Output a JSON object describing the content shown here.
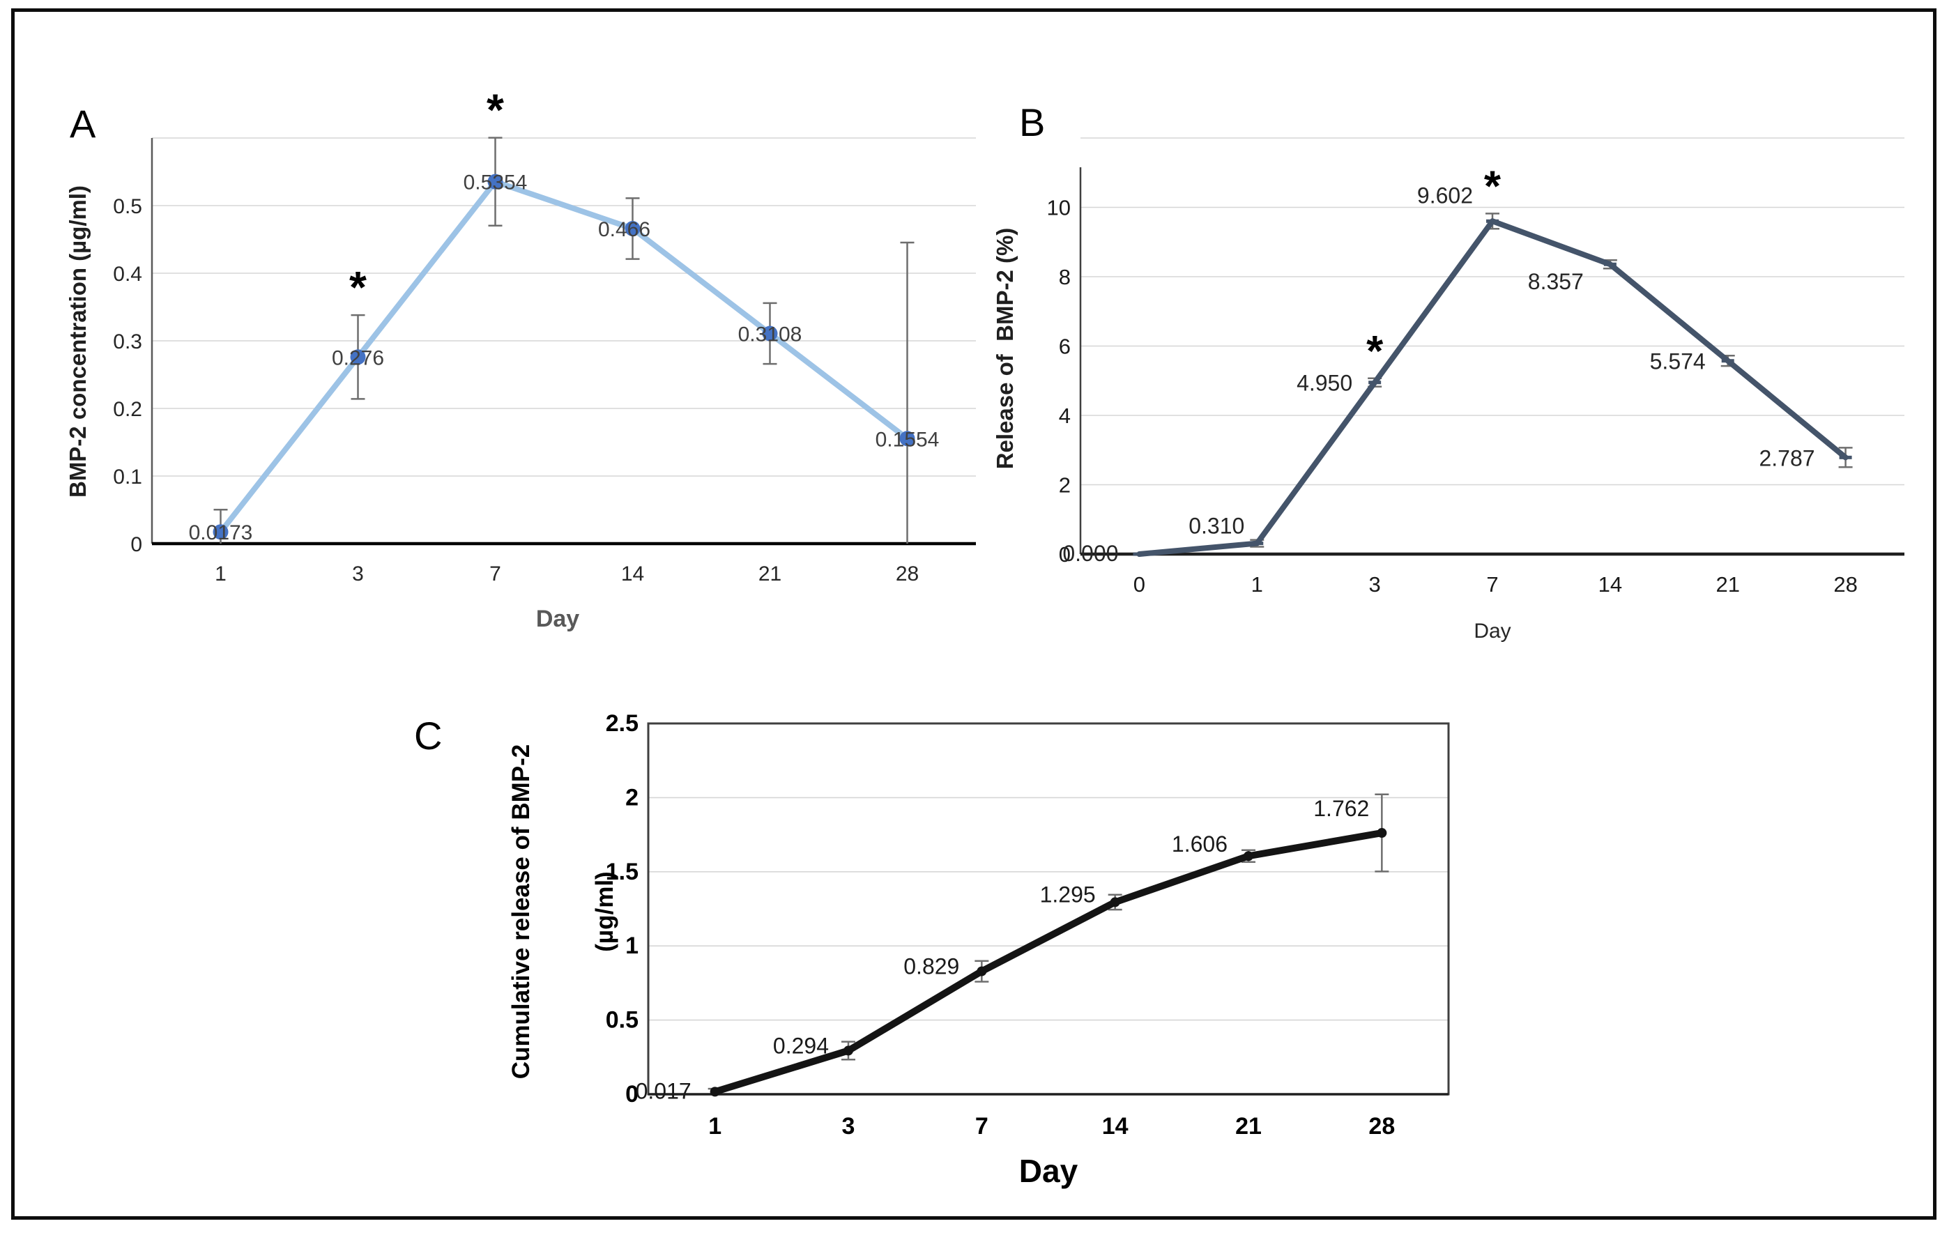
{
  "figure": {
    "background": "#ffffff",
    "border_color": "#0d0d0d"
  },
  "panels": [
    {
      "letter": "A"
    },
    {
      "letter": "B"
    },
    {
      "letter": "C"
    }
  ],
  "chart_data": [
    {
      "panel": "A",
      "type": "line",
      "title": "",
      "xlabel": "Day",
      "ylabel": "BMP-2 concentration (µg/ml)",
      "categories": [
        "1",
        "3",
        "7",
        "14",
        "21",
        "28"
      ],
      "values": [
        0.0173,
        0.276,
        0.5354,
        0.466,
        0.3108,
        0.1554
      ],
      "data_labels": [
        "0.0173",
        "0.276",
        "0.5354",
        "0.466",
        "0.3108",
        "0.1554"
      ],
      "errors": [
        0.033,
        0.062,
        0.065,
        0.045,
        0.045,
        0.29
      ],
      "significance_markers": [
        {
          "index": 1,
          "symbol": "*"
        },
        {
          "index": 2,
          "symbol": "*"
        }
      ],
      "ylim": [
        0,
        0.6
      ],
      "ytick_step": 0.1,
      "ytick_labels": [
        "0",
        "0.1",
        "0.2",
        "0.3",
        "0.4",
        "0.5"
      ],
      "grid": true,
      "legend": "none",
      "line_color": "#9DC3E6",
      "marker_color": "#4472C4",
      "marker": "circle"
    },
    {
      "panel": "B",
      "type": "line",
      "title": "",
      "xlabel": "Day",
      "ylabel": "Release of  BMP-2 (%)",
      "categories": [
        "0",
        "1",
        "3",
        "7",
        "14",
        "21",
        "28"
      ],
      "values": [
        0.0,
        0.31,
        4.95,
        9.602,
        8.357,
        5.574,
        2.787
      ],
      "data_labels": [
        "0.000",
        "0.310",
        "4.950",
        "9.602",
        "8.357",
        "5.574",
        "2.787"
      ],
      "errors": [
        0,
        0.1,
        0.12,
        0.22,
        0.12,
        0.15,
        0.28
      ],
      "significance_markers": [
        {
          "index": 2,
          "symbol": "*"
        },
        {
          "index": 3,
          "symbol": "*"
        }
      ],
      "ylim": [
        0,
        12
      ],
      "ytick_step": 2,
      "ytick_labels": [
        "0",
        "2",
        "4",
        "6",
        "8",
        "10"
      ],
      "grid": true,
      "legend": "none",
      "line_color": "#44546A",
      "marker_color": "#44546A",
      "marker": "dash"
    },
    {
      "panel": "C",
      "type": "line",
      "title": "",
      "xlabel": "Day",
      "ylabel": "Cumulative release of BMP-2 (µg/ml)",
      "ylabel_lines": [
        "Cumulative release of BMP-2",
        "(µg/ml)"
      ],
      "categories": [
        "1",
        "3",
        "7",
        "14",
        "21",
        "28"
      ],
      "values": [
        0.017,
        0.294,
        0.829,
        1.295,
        1.606,
        1.762
      ],
      "data_labels": [
        "0.017",
        "0.294",
        "0.829",
        "1.295",
        "1.606",
        "1.762"
      ],
      "errors": [
        0.02,
        0.06,
        0.07,
        0.05,
        0.04,
        0.26
      ],
      "significance_markers": [],
      "ylim": [
        0,
        2.5
      ],
      "ytick_step": 0.5,
      "ytick_labels": [
        "0",
        "0.5",
        "1",
        "1.5",
        "2",
        "2.5"
      ],
      "grid": true,
      "legend": "none",
      "line_color": "#141414",
      "marker_color": "#141414",
      "marker": "circle"
    }
  ]
}
